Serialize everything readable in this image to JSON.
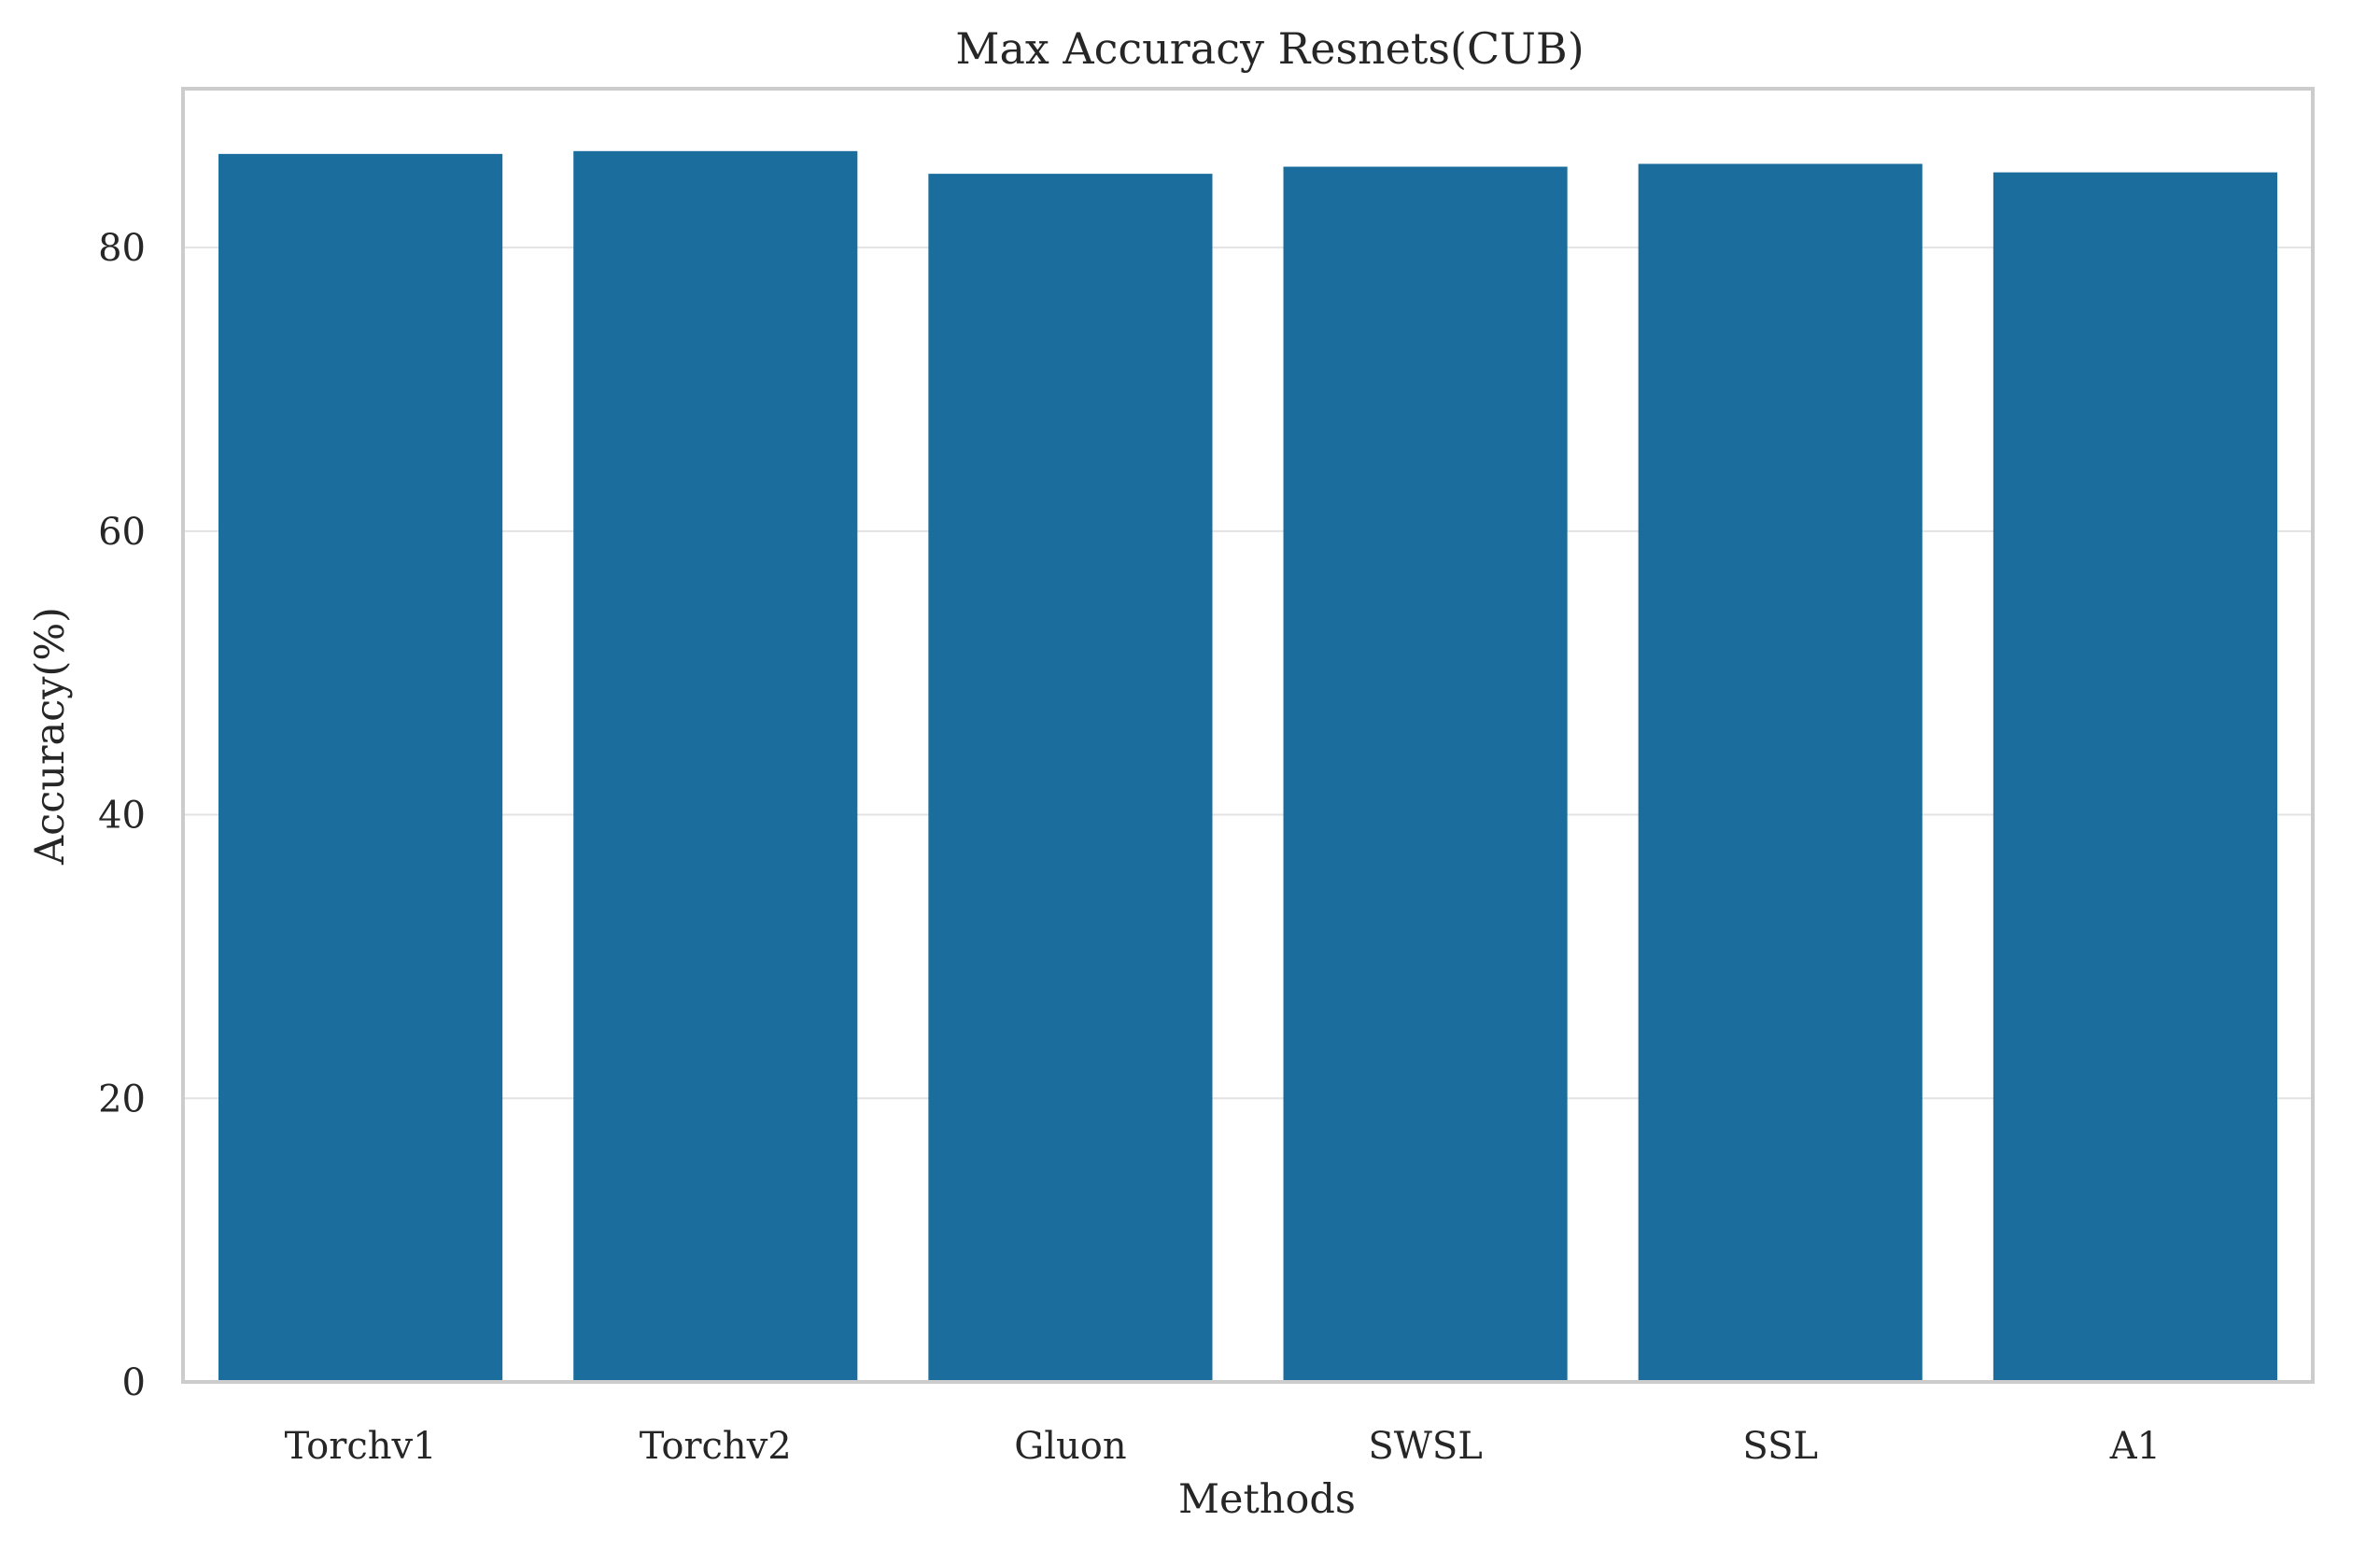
{
  "chart_data": {
    "type": "bar",
    "title": "Max Accuracy Resnets(CUB)",
    "xlabel": "Methods",
    "ylabel": "Accuracy(%)",
    "categories": [
      "Torchv1",
      "Torchv2",
      "Gluon",
      "SWSL",
      "SSL",
      "A1"
    ],
    "values": [
      86.6,
      86.8,
      85.2,
      85.7,
      85.9,
      85.3
    ],
    "ylim": [
      0,
      91.2
    ],
    "yticks": [
      0,
      20,
      40,
      60,
      80
    ],
    "ytick_labels": [
      "0",
      "20",
      "40",
      "60",
      "80"
    ],
    "grid": true,
    "bar_color": "#1a6d9c"
  }
}
